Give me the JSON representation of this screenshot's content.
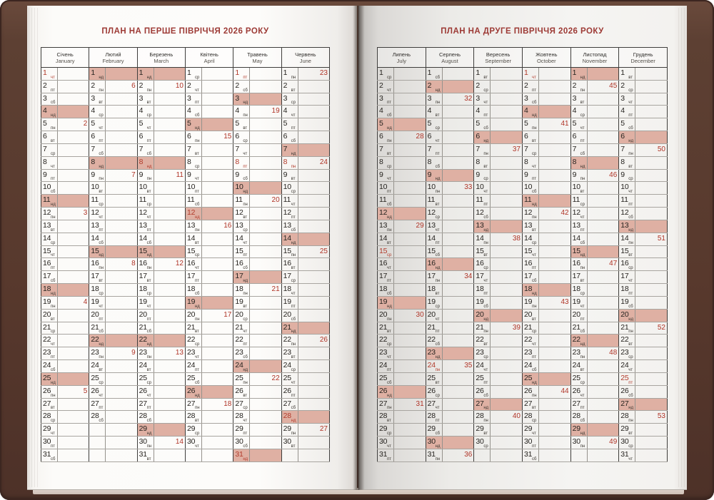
{
  "book_title_context": "2026 planner spread",
  "weekday_labels": [
    "пн",
    "вт",
    "ср",
    "чт",
    "пт",
    "сб",
    "нд"
  ],
  "colors": {
    "sunday_highlight": "#dfb0a3",
    "holiday_red": "#b23c2c",
    "week_number_red": "#b03427",
    "title_red": "#9d3a35",
    "cover_brown": "#5d4033"
  },
  "pages": [
    {
      "side": "left",
      "title": "ПЛАН НА ПЕРШЕ ПІВРІЧЧЯ 2026 РОКУ",
      "months": [
        {
          "name_ua": "Січень",
          "name_en": "January",
          "days": 31,
          "first_weekday": 3,
          "weeks": {
            "5": 2,
            "12": 3,
            "19": 4,
            "26": 5
          },
          "holidays": [
            1
          ]
        },
        {
          "name_ua": "Лютий",
          "name_en": "February",
          "days": 28,
          "first_weekday": 6,
          "weeks": {
            "2": 6,
            "9": 7,
            "16": 8,
            "23": 9
          },
          "holidays": []
        },
        {
          "name_ua": "Березень",
          "name_en": "March",
          "days": 31,
          "first_weekday": 6,
          "weeks": {
            "2": 10,
            "9": 11,
            "16": 12,
            "23": 13,
            "30": 14
          },
          "holidays": [
            8
          ]
        },
        {
          "name_ua": "Квітень",
          "name_en": "April",
          "days": 30,
          "first_weekday": 2,
          "weeks": {
            "6": 15,
            "13": 16,
            "20": 17,
            "27": 18
          },
          "holidays": [
            12
          ]
        },
        {
          "name_ua": "Травень",
          "name_en": "May",
          "days": 31,
          "first_weekday": 4,
          "weeks": {
            "4": 19,
            "11": 20,
            "18": 21,
            "25": 22
          },
          "holidays": [
            1,
            8,
            31
          ]
        },
        {
          "name_ua": "Червень",
          "name_en": "June",
          "days": 30,
          "first_weekday": 0,
          "weeks": {
            "1": 23,
            "8": 24,
            "15": 25,
            "22": 26,
            "29": 27
          },
          "holidays": [
            8,
            28
          ]
        }
      ]
    },
    {
      "side": "right",
      "title": "ПЛАН НА ДРУГЕ ПІВРІЧЧЯ 2026 РОКУ",
      "months": [
        {
          "name_ua": "Липень",
          "name_en": "July",
          "days": 31,
          "first_weekday": 2,
          "weeks": {
            "6": 28,
            "13": 29,
            "20": 30,
            "27": 31
          },
          "holidays": [
            15
          ]
        },
        {
          "name_ua": "Серпень",
          "name_en": "August",
          "days": 31,
          "first_weekday": 5,
          "weeks": {
            "3": 32,
            "10": 33,
            "17": 34,
            "24": 35,
            "31": 36
          },
          "holidays": [
            24
          ]
        },
        {
          "name_ua": "Вересень",
          "name_en": "September",
          "days": 30,
          "first_weekday": 1,
          "weeks": {
            "7": 37,
            "14": 38,
            "21": 39,
            "28": 40
          },
          "holidays": []
        },
        {
          "name_ua": "Жовтень",
          "name_en": "October",
          "days": 31,
          "first_weekday": 3,
          "weeks": {
            "5": 41,
            "12": 42,
            "19": 43,
            "26": 44
          },
          "holidays": [
            1
          ]
        },
        {
          "name_ua": "Листопад",
          "name_en": "November",
          "days": 30,
          "first_weekday": 6,
          "weeks": {
            "2": 45,
            "9": 46,
            "16": 47,
            "23": 48,
            "30": 49
          },
          "holidays": []
        },
        {
          "name_ua": "Грудень",
          "name_en": "December",
          "days": 31,
          "first_weekday": 1,
          "weeks": {
            "7": 50,
            "14": 51,
            "21": 52,
            "28": 53
          },
          "holidays": [
            25
          ]
        }
      ]
    }
  ],
  "rows_per_month": 31
}
